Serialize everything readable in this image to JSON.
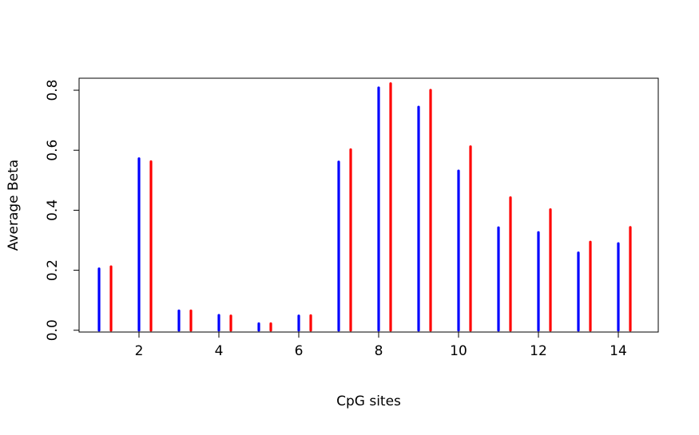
{
  "chart_data": {
    "type": "bar",
    "xlabel": "CpG sites",
    "ylabel": "Average Beta",
    "xlim": [
      0.5,
      15.0
    ],
    "ylim": [
      -0.006,
      0.84
    ],
    "x_ticks": [
      2,
      4,
      6,
      8,
      10,
      12,
      14
    ],
    "x_tick_labels": [
      "2",
      "4",
      "6",
      "8",
      "10",
      "12",
      "14"
    ],
    "y_ticks": [
      0.0,
      0.2,
      0.4,
      0.6,
      0.8
    ],
    "y_tick_labels": [
      "0.0",
      "0.2",
      "0.4",
      "0.6",
      "0.8"
    ],
    "series": [
      {
        "color": "#0000ff",
        "offset": 0,
        "x": [
          1,
          2,
          3,
          4,
          5,
          6,
          7,
          8,
          9,
          10,
          11,
          12,
          13,
          14
        ],
        "values": [
          0.205,
          0.572,
          0.065,
          0.05,
          0.022,
          0.048,
          0.561,
          0.808,
          0.744,
          0.531,
          0.342,
          0.326,
          0.258,
          0.289
        ]
      },
      {
        "color": "#ff0000",
        "offset": 0.3,
        "x": [
          1,
          2,
          3,
          4,
          5,
          6,
          7,
          8,
          9,
          10,
          11,
          12,
          13,
          14
        ],
        "values": [
          0.212,
          0.562,
          0.065,
          0.048,
          0.022,
          0.049,
          0.602,
          0.822,
          0.8,
          0.612,
          0.442,
          0.402,
          0.294,
          0.343
        ]
      }
    ],
    "grid": false,
    "legend": "none"
  }
}
